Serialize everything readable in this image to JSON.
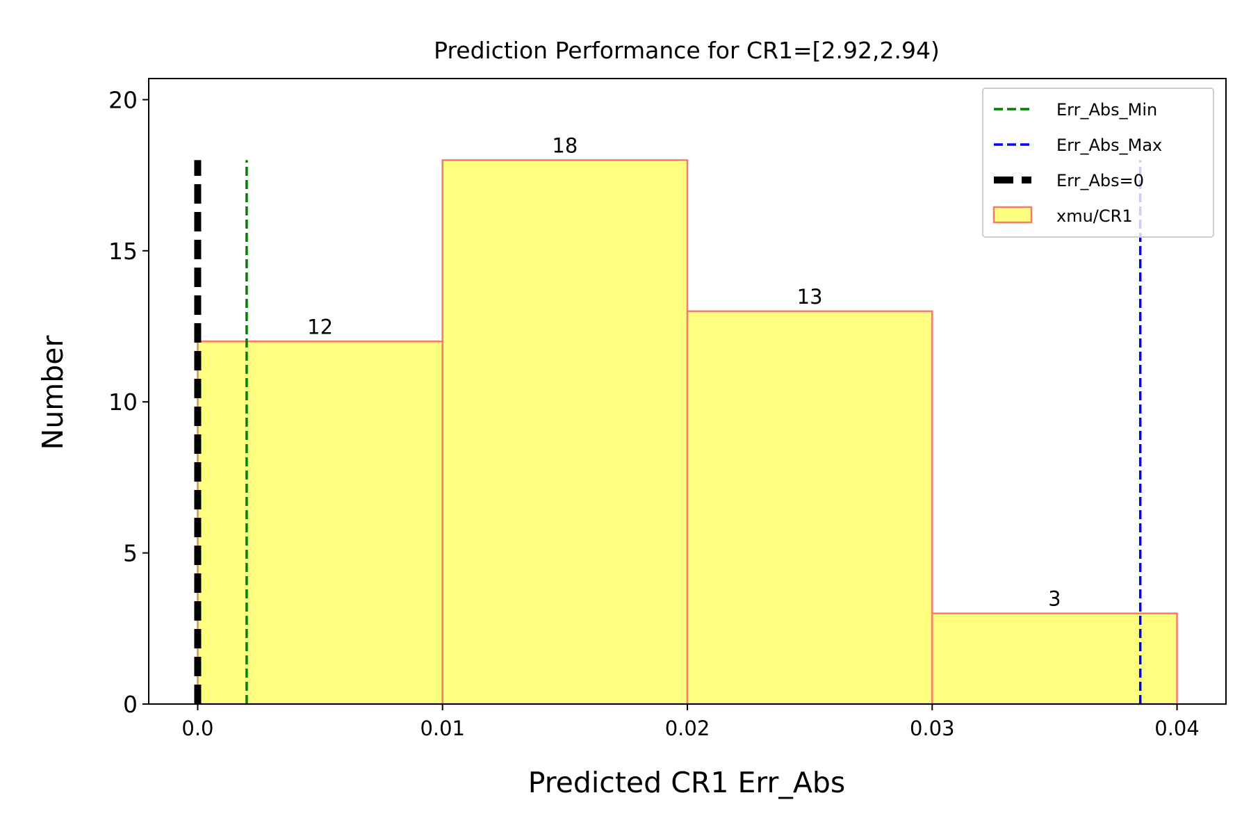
{
  "chart_data": {
    "type": "bar",
    "title": "Prediction Performance for CR1=[2.92,2.94)",
    "xlabel": "Predicted CR1 Err_Abs",
    "ylabel": "Number",
    "xlim": [
      -0.002,
      0.042
    ],
    "ylim": [
      0,
      20.7
    ],
    "xticks": [
      0.0,
      0.01,
      0.02,
      0.03,
      0.04
    ],
    "xtick_labels": [
      "0.0",
      "0.01",
      "0.02",
      "0.03",
      "0.04"
    ],
    "yticks": [
      0,
      5,
      10,
      15,
      20
    ],
    "ytick_labels": [
      "0",
      "5",
      "10",
      "15",
      "20"
    ],
    "grid": false,
    "legend_position": "top-right",
    "bins": [
      {
        "x0": 0.0,
        "x1": 0.01,
        "value": 12,
        "label": "12"
      },
      {
        "x0": 0.01,
        "x1": 0.02,
        "value": 18,
        "label": "18"
      },
      {
        "x0": 0.02,
        "x1": 0.03,
        "value": 13,
        "label": "13"
      },
      {
        "x0": 0.03,
        "x1": 0.04,
        "value": 3,
        "label": "3"
      }
    ],
    "bar_series": {
      "name": "xmu/CR1",
      "fill": "#ffff7f",
      "edge": "#f97a6a"
    },
    "vlines": [
      {
        "name": "Err_Abs_Min",
        "x": 0.002,
        "ymax": 18,
        "color": "#008000",
        "style": "dashed"
      },
      {
        "name": "Err_Abs_Max",
        "x": 0.0385,
        "ymax": 18,
        "color": "#0000ff",
        "style": "dashed"
      },
      {
        "name": "Err_Abs=0",
        "x": 0.0,
        "ymax": 18,
        "color": "#000000",
        "style": "dashed-thick"
      }
    ],
    "legend": [
      "Err_Abs_Min",
      "Err_Abs_Max",
      "Err_Abs=0",
      "xmu/CR1"
    ]
  }
}
